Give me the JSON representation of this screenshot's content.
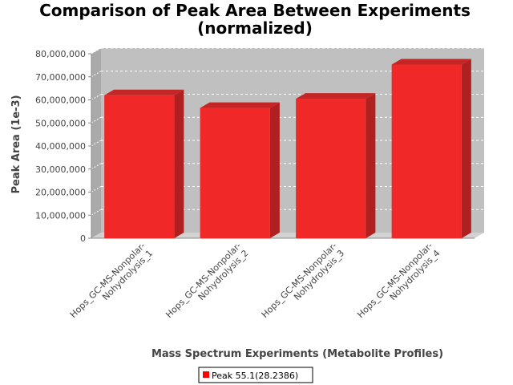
{
  "chart_data": {
    "type": "bar",
    "title_lines": [
      "Comparison of Peak Area Between Experiments",
      "(normalized)"
    ],
    "xlabel": "Mass Spectrum Experiments (Metabolite Profiles)",
    "ylabel": "Peak Area (1e-3)",
    "categories": [
      [
        "Hops_GC-MS-Nonpolar-",
        "Nohydrolysis_1"
      ],
      [
        "Hops_GC-MS-Nonpolar-",
        "Nohydrolysis_2"
      ],
      [
        "Hops_GC-MS-Nonpolar-",
        "Nohydrolysis_3"
      ],
      [
        "Hops_GC-MS-Nonpolar-",
        "Nohydrolysis_4"
      ]
    ],
    "series": [
      {
        "name": "Peak 55.1(28.2386)",
        "values": [
          62000000,
          56500000,
          60500000,
          75300000
        ]
      }
    ],
    "ylim": [
      0,
      80000000
    ],
    "yticks": [
      0,
      10000000,
      20000000,
      30000000,
      40000000,
      50000000,
      60000000,
      70000000,
      80000000
    ],
    "ytick_labels": [
      "0",
      "10,000,000",
      "20,000,000",
      "30,000,000",
      "40,000,000",
      "50,000,000",
      "60,000,000",
      "70,000,000",
      "80,000,000"
    ],
    "grid": true,
    "legend_position": "bottom",
    "colors": {
      "bar_front": "#f02828",
      "bar_side": "#b02020",
      "bar_top": "#c42626",
      "plot_back": "#c0c0c0",
      "plot_floor": "#d2d2d2",
      "plot_side": "#aaaaaa",
      "legend_swatch": "#ff0000"
    }
  }
}
